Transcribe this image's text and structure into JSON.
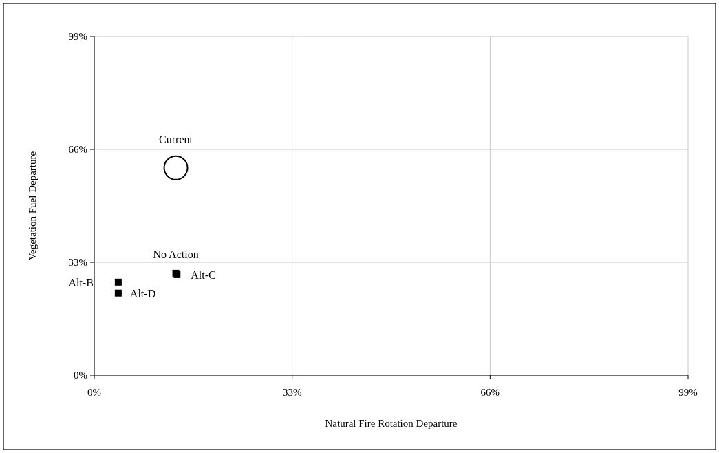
{
  "chart_data": {
    "type": "scatter",
    "xlabel": "Natural Fire Rotation Departure",
    "ylabel": "Vegetation Fuel Departure",
    "xlim": [
      0,
      99
    ],
    "ylim": [
      0,
      99
    ],
    "xticks": [
      {
        "value": 0,
        "label": "0%"
      },
      {
        "value": 33,
        "label": "33%"
      },
      {
        "value": 66,
        "label": "66%"
      },
      {
        "value": 99,
        "label": "99%"
      }
    ],
    "yticks": [
      {
        "value": 0,
        "label": "0%"
      },
      {
        "value": 33,
        "label": "33%"
      },
      {
        "value": 66,
        "label": "66%"
      },
      {
        "value": 99,
        "label": "99%"
      }
    ],
    "grid": true,
    "series": [
      {
        "color": "#000000",
        "marker": "circle",
        "x": [
          13.6
        ],
        "values": [
          60.6
        ]
      },
      {
        "color": "#000000",
        "marker": "square",
        "x": [
          13.6,
          13.8,
          4.0,
          4.0
        ],
        "values": [
          29.8,
          29.4,
          27.2,
          24.0
        ]
      }
    ],
    "annotations": [
      {
        "text": "Current",
        "x": 13.6,
        "y": 60.6
      },
      {
        "text": "No Action",
        "x": 13.6,
        "y": 29.8
      },
      {
        "text": "Alt-C",
        "x": 13.8,
        "y": 29.4
      },
      {
        "text": "Alt-B",
        "x": 4.0,
        "y": 27.2
      },
      {
        "text": "Alt-D",
        "x": 4.0,
        "y": 24.0
      }
    ]
  }
}
